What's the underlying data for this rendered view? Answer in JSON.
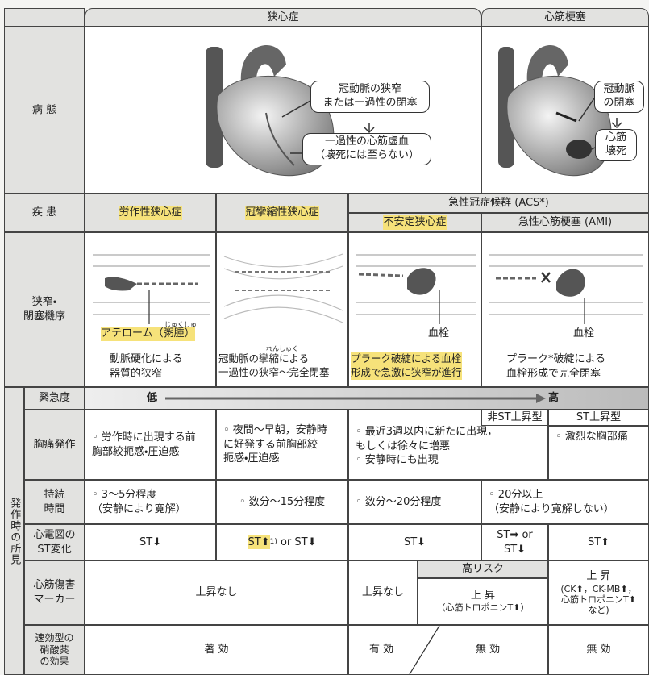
{
  "columns": {
    "angina": "狭心症",
    "infarction": "心筋梗塞"
  },
  "pathology": {
    "label": "病 態",
    "angina_box1": "冠動脈の狭窄\nまたは一過性の閉塞",
    "angina_box2": "一過性の心筋虚血\n（壊死には至らない）",
    "mi_box1": "冠動脈\nの閉塞",
    "mi_box2": "心筋\n壊死"
  },
  "disease": {
    "label": "疾 患",
    "effort": "労作性狭心症",
    "vasospastic": "冠攣縮性狭心症",
    "acs": "急性冠症候群 (ACS*)",
    "unstable": "不安定狭心症",
    "ami": "急性心筋梗塞 (AMI)"
  },
  "mechanism": {
    "label": "狭窄・\n閉塞機序",
    "atheroma": "アテローム（粥腫）",
    "atheroma_ruby": "じゅくしゅ",
    "thrombus_1": "血栓",
    "thrombus_2": "血栓",
    "spasm_ruby": "れんしゅく",
    "desc": [
      "動脈硬化による\n器質的狭窄",
      "冠動脈の攣縮による\n一過性の狭窄～完全閉塞",
      "プラーク破綻による血栓\n形成で急激に狭窄が進行",
      "プラーク*破綻による\n血栓形成で完全閉塞"
    ]
  },
  "findings_label": "発作時の所見",
  "urgency": {
    "label": "緊急度",
    "low": "低",
    "high": "高"
  },
  "chest_pain": {
    "label": "胸痛発作",
    "nstemi": "非ST上昇型",
    "stemi": "ST上昇型",
    "cells": [
      [
        "◦ 労作時に出現する前\n胸部絞扼感・圧迫感"
      ],
      [
        "◦ 夜間～早朝，安静時\nに好発する前胸部絞\n扼感・圧迫感"
      ],
      [
        "◦ 最近3週以内に新たに出現，\n もしくは徐々に増悪",
        "◦ 安静時にも出現"
      ],
      [
        "◦ 激烈な胸部痛"
      ]
    ]
  },
  "duration": {
    "label": "持続\n時間",
    "cells": [
      "◦ 3～5分程度\n（安静により寛解）",
      "◦ 数分～15分程度",
      "◦ 数分～20分程度",
      "◦ 20分以上\n（安静により寛解しない）"
    ]
  },
  "ecg": {
    "label": "心電図の\nST変化",
    "cells": [
      "ST⬇",
      {
        "main": "ST⬆",
        "note": "1)",
        "rest": " or ST⬇"
      },
      "ST⬇",
      "ST➡ or\nST⬇",
      "ST⬆"
    ]
  },
  "marker": {
    "label": "心筋傷害\nマーカー",
    "none_1": "上昇なし",
    "none_2": "上昇なし",
    "high_risk": "高リスク",
    "rise_1": "上 昇",
    "rise_1_note": "（心筋トロポニンT⬆）",
    "rise_2": "上 昇",
    "rise_2_note": "(CK⬆，CK-MB⬆，\n心筋トロポニンT⬆\nなど)"
  },
  "nitrate": {
    "label": "速効型の\n硝酸薬\nの効果",
    "cells": [
      "著 効",
      "有 効",
      "無 効",
      "無 効"
    ]
  }
}
